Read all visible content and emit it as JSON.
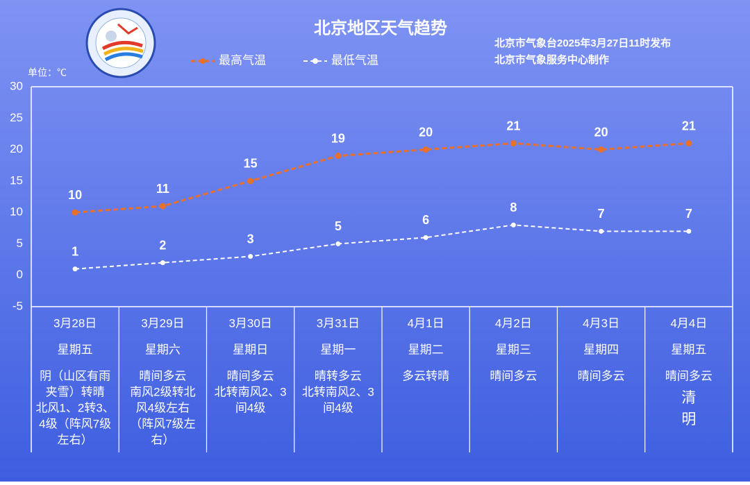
{
  "chart_data": {
    "type": "line",
    "title": "北京地区天气趋势",
    "publisher": [
      "北京市气象台2025年3月27日11时发布",
      "北京市气象服务中心制作"
    ],
    "unit_label": "单位：℃",
    "categories": [
      "3月28日",
      "3月29日",
      "3月30日",
      "3月31日",
      "4月1日",
      "4月2日",
      "4月3日",
      "4月4日"
    ],
    "weekdays": [
      "星期五",
      "星期六",
      "星期日",
      "星期一",
      "星期二",
      "星期三",
      "星期四",
      "星期五"
    ],
    "weather": [
      [
        "阴（山区有雨",
        "夹雪）转晴",
        "北风1、2转3、",
        "4级（阵风7级",
        "左右）"
      ],
      [
        "晴间多云",
        "南风2级转北",
        "风4级左右",
        "（阵风7级左",
        "右）"
      ],
      [
        "晴间多云",
        "北转南风2、3",
        "间4级"
      ],
      [
        "晴转多云",
        "北转南风2、3",
        "间4级"
      ],
      [
        "多云转晴"
      ],
      [
        "晴间多云"
      ],
      [
        "晴间多云"
      ],
      [
        "晴间多云"
      ]
    ],
    "notes": [
      null,
      null,
      null,
      null,
      null,
      null,
      null,
      [
        "清",
        "明"
      ]
    ],
    "series": [
      {
        "name": "最高气温",
        "color": "#e8702a",
        "values": [
          10,
          11,
          15,
          19,
          20,
          21,
          20,
          21
        ]
      },
      {
        "name": "最低气温",
        "color": "#ffffff",
        "values": [
          1,
          2,
          3,
          5,
          6,
          8,
          7,
          7
        ]
      }
    ],
    "ylim": [
      -5,
      30
    ],
    "yticks": [
      -5,
      0,
      5,
      10,
      15,
      20,
      25,
      30
    ]
  }
}
